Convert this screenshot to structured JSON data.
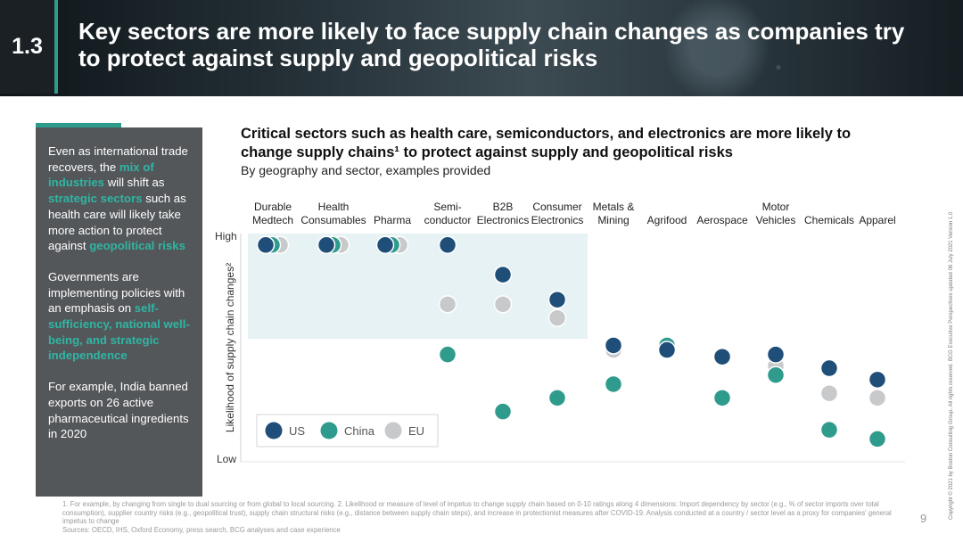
{
  "slide": {
    "number": "1.3",
    "title": "Key sectors are more likely to face supply chain changes as companies try to protect against supply and geopolitical risks",
    "page_number": "9",
    "copyright": "Copyright © 2021 by Boston Consulting Group. All rights reserved. BCG Executive Perspectives updated 06 July 2021 Version 1.0"
  },
  "sidebar": {
    "p1": {
      "t1": "Even as international trade recovers, the ",
      "h1": "mix of industries",
      "t2": " will shift as ",
      "h2": "strategic sectors",
      "t3": " such as health care will likely take more action to protect against ",
      "h3": "geopolitical risks"
    },
    "p2": {
      "t1": "Governments are implementing policies with an emphasis on ",
      "h1": "self-sufficiency, national well-being, and strategic independence"
    },
    "p3": {
      "t1": "For example, India banned exports on 26 active pharmaceutical ingredients in 2020"
    }
  },
  "chart_header": {
    "title": "Critical sectors such as health care, semiconductors, and electronics are more likely to change supply chains¹ to protect against supply and geopolitical risks",
    "subtitle": "By geography and sector, examples provided"
  },
  "colors": {
    "US": "#1f4e79",
    "China": "#2f9b8d",
    "EU": "#c8c9cb",
    "highlight": "#e6f2f4"
  },
  "chart_data": {
    "type": "scatter",
    "ylabel": "Likelihood of supply chain changes²",
    "y_high_label": "High",
    "y_low_label": "Low",
    "ylim": [
      0,
      10
    ],
    "legend_position": "bottom-left",
    "categories": [
      [
        "Durable",
        "Medtech"
      ],
      [
        "Health",
        "Consumables"
      ],
      [
        "",
        "Pharma"
      ],
      [
        "Semi-",
        "conductor"
      ],
      [
        "B2B",
        "Electronics"
      ],
      [
        "Consumer",
        "Electronics"
      ],
      [
        "Metals &",
        "Mining"
      ],
      [
        "",
        "Agrifood"
      ],
      [
        "",
        "Aerospace"
      ],
      [
        "Motor",
        "Vehicles"
      ],
      [
        "",
        "Chemicals"
      ],
      [
        "",
        "Apparel"
      ]
    ],
    "highlight_categories": [
      "Durable Medtech",
      "Health Consumables",
      "Pharma",
      "Semi-conductor",
      "B2B Electronics",
      "Consumer Electronics"
    ],
    "series": [
      {
        "name": "US",
        "values": [
          9.5,
          9.5,
          9.5,
          9.5,
          8.2,
          7.1,
          5.1,
          4.9,
          4.6,
          4.7,
          4.1,
          3.6
        ]
      },
      {
        "name": "China",
        "values": [
          9.5,
          9.5,
          9.5,
          4.7,
          2.2,
          2.8,
          3.4,
          5.1,
          2.8,
          3.8,
          1.4,
          1.0
        ]
      },
      {
        "name": "EU",
        "values": [
          9.5,
          9.5,
          9.5,
          6.9,
          6.9,
          6.3,
          4.9,
          4.9,
          4.6,
          4.2,
          3.0,
          2.8
        ]
      }
    ]
  },
  "footnotes": {
    "line1": "1. For example, by changing from single to dual sourcing or from global to local sourcing. 2. Likelihood or measure of level of impetus to change supply chain based on 0-10 ratings along 4 dimensions: Import dependency by sector (e.g., % of sector imports over total consumption), supplier country risks (e.g., geopolitical trust), supply chain structural risks (e.g., distance between supply chain steps), and increase in protectionist measures after COVID-19. Analysis conducted at a country / sector level as a proxy for companies' general impetus to change",
    "sources": "Sources: OECD, IHS, Oxford Economy, press search, BCG analyses and case experience"
  }
}
